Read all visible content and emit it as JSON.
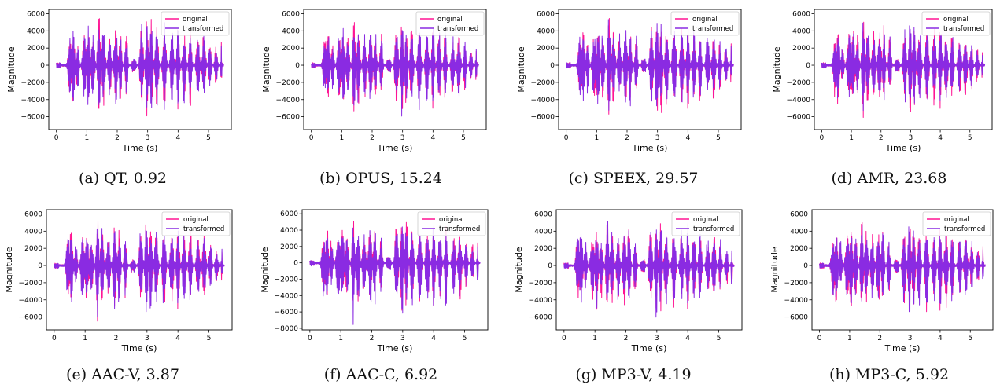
{
  "colors": {
    "original": "#ff1493",
    "transformed": "#8a2be2"
  },
  "chart_data": [
    {
      "type": "line",
      "caption": "(a) QT, 0.92",
      "xlabel": "Time (s)",
      "ylabel": "Magnitude",
      "xlim": [
        -0.25,
        5.75
      ],
      "ylim": [
        -7500,
        6500
      ],
      "xticks": [
        0,
        1,
        2,
        3,
        4,
        5
      ],
      "xtick_labels": [
        "0",
        "1",
        "2",
        "3",
        "4",
        "5"
      ],
      "yticks": [
        -6000,
        -4000,
        -2000,
        0,
        2000,
        4000,
        6000
      ],
      "ytick_labels": [
        "−6000",
        "−4000",
        "−2000",
        "0",
        "2000",
        "4000",
        "6000"
      ],
      "legend": {
        "position": "top-right",
        "entries": [
          "original",
          "transformed"
        ]
      },
      "series": [
        {
          "name": "original",
          "color": "#ff1493",
          "x_range": [
            0,
            5.5
          ],
          "peak_max": 6200,
          "peak_min": -6700
        },
        {
          "name": "transformed",
          "color": "#8a2be2",
          "x_range": [
            0,
            5.5
          ],
          "peak_max": 6100,
          "peak_min": -6600
        }
      ]
    },
    {
      "type": "line",
      "caption": "(b) OPUS, 15.24",
      "xlabel": "Time (s)",
      "ylabel": "Magnitude",
      "xlim": [
        -0.25,
        5.75
      ],
      "ylim": [
        -7500,
        6500
      ],
      "xticks": [
        0,
        1,
        2,
        3,
        4,
        5
      ],
      "xtick_labels": [
        "0",
        "1",
        "2",
        "3",
        "4",
        "5"
      ],
      "yticks": [
        -6000,
        -4000,
        -2000,
        0,
        2000,
        4000,
        6000
      ],
      "ytick_labels": [
        "−6000",
        "−4000",
        "−2000",
        "0",
        "2000",
        "4000",
        "6000"
      ],
      "legend": {
        "position": "top-right",
        "entries": [
          "original",
          "transformed"
        ]
      },
      "series": [
        {
          "name": "original",
          "color": "#ff1493",
          "x_range": [
            0,
            5.5
          ],
          "peak_max": 6200,
          "peak_min": -6600
        },
        {
          "name": "transformed",
          "color": "#8a2be2",
          "x_range": [
            0,
            5.5
          ],
          "peak_max": 5800,
          "peak_min": -6200
        }
      ]
    },
    {
      "type": "line",
      "caption": "(c) SPEEX, 29.57",
      "xlabel": "Time (s)",
      "ylabel": "Magnitude",
      "xlim": [
        -0.25,
        5.75
      ],
      "ylim": [
        -7500,
        6500
      ],
      "xticks": [
        0,
        1,
        2,
        3,
        4,
        5
      ],
      "xtick_labels": [
        "0",
        "1",
        "2",
        "3",
        "4",
        "5"
      ],
      "yticks": [
        -6000,
        -4000,
        -2000,
        0,
        2000,
        4000,
        6000
      ],
      "ytick_labels": [
        "−6000",
        "−4000",
        "−2000",
        "0",
        "2000",
        "4000",
        "6000"
      ],
      "legend": {
        "position": "top-right",
        "entries": [
          "original",
          "transformed"
        ]
      },
      "series": [
        {
          "name": "original",
          "color": "#ff1493",
          "x_range": [
            0,
            5.5
          ],
          "peak_max": 6200,
          "peak_min": -6600
        },
        {
          "name": "transformed",
          "color": "#8a2be2",
          "x_range": [
            0,
            5.5
          ],
          "peak_max": 6400,
          "peak_min": -6500
        }
      ]
    },
    {
      "type": "line",
      "caption": "(d) AMR, 23.68",
      "xlabel": "Time (s)",
      "ylabel": "Magnitude",
      "xlim": [
        -0.25,
        5.75
      ],
      "ylim": [
        -7500,
        6500
      ],
      "xticks": [
        0,
        1,
        2,
        3,
        4,
        5
      ],
      "xtick_labels": [
        "0",
        "1",
        "2",
        "3",
        "4",
        "5"
      ],
      "yticks": [
        -6000,
        -4000,
        -2000,
        0,
        2000,
        4000,
        6000
      ],
      "ytick_labels": [
        "−6000",
        "−4000",
        "−2000",
        "0",
        "2000",
        "4000",
        "6000"
      ],
      "legend": {
        "position": "top-right",
        "entries": [
          "original",
          "transformed"
        ]
      },
      "series": [
        {
          "name": "original",
          "color": "#ff1493",
          "x_range": [
            0,
            5.5
          ],
          "peak_max": 6200,
          "peak_min": -6600
        },
        {
          "name": "transformed",
          "color": "#8a2be2",
          "x_range": [
            0,
            5.5
          ],
          "peak_max": 5800,
          "peak_min": -6100
        }
      ]
    },
    {
      "type": "line",
      "caption": "(e) AAC-V, 3.87",
      "xlabel": "Time (s)",
      "ylabel": "Magnitude",
      "xlim": [
        -0.25,
        5.75
      ],
      "ylim": [
        -7500,
        6500
      ],
      "xticks": [
        0,
        1,
        2,
        3,
        4,
        5
      ],
      "xtick_labels": [
        "0",
        "1",
        "2",
        "3",
        "4",
        "5"
      ],
      "yticks": [
        -6000,
        -4000,
        -2000,
        0,
        2000,
        4000,
        6000
      ],
      "ytick_labels": [
        "−6000",
        "−4000",
        "−2000",
        "0",
        "2000",
        "4000",
        "6000"
      ],
      "legend": {
        "position": "top-right",
        "entries": [
          "original",
          "transformed"
        ]
      },
      "series": [
        {
          "name": "original",
          "color": "#ff1493",
          "x_range": [
            0,
            5.5
          ],
          "peak_max": 6000,
          "peak_min": -6600
        },
        {
          "name": "transformed",
          "color": "#8a2be2",
          "x_range": [
            0,
            5.5
          ],
          "peak_max": 5900,
          "peak_min": -6500
        }
      ]
    },
    {
      "type": "line",
      "caption": "(f) AAC-C, 6.92",
      "xlabel": "Time (s)",
      "ylabel": "Magnitude",
      "xlim": [
        -0.25,
        5.75
      ],
      "ylim": [
        -8200,
        6500
      ],
      "xticks": [
        0,
        1,
        2,
        3,
        4,
        5
      ],
      "xtick_labels": [
        "0",
        "1",
        "2",
        "3",
        "4",
        "5"
      ],
      "yticks": [
        -8000,
        -6000,
        -4000,
        -2000,
        0,
        2000,
        4000,
        6000
      ],
      "ytick_labels": [
        "−8000",
        "−6000",
        "−4000",
        "−2000",
        "0",
        "2000",
        "4000",
        "6000"
      ],
      "legend": {
        "position": "top-right",
        "entries": [
          "original",
          "transformed"
        ]
      },
      "series": [
        {
          "name": "original",
          "color": "#ff1493",
          "x_range": [
            0,
            5.5
          ],
          "peak_max": 6200,
          "peak_min": -6800
        },
        {
          "name": "transformed",
          "color": "#8a2be2",
          "x_range": [
            0,
            5.5
          ],
          "peak_max": 5900,
          "peak_min": -7700
        }
      ]
    },
    {
      "type": "line",
      "caption": "(g) MP3-V, 4.19",
      "xlabel": "Time (s)",
      "ylabel": "Magnitude",
      "xlim": [
        -0.25,
        5.75
      ],
      "ylim": [
        -7500,
        6500
      ],
      "xticks": [
        0,
        1,
        2,
        3,
        4,
        5
      ],
      "xtick_labels": [
        "0",
        "1",
        "2",
        "3",
        "4",
        "5"
      ],
      "yticks": [
        -6000,
        -4000,
        -2000,
        0,
        2000,
        4000,
        6000
      ],
      "ytick_labels": [
        "−6000",
        "−4000",
        "−2000",
        "0",
        "2000",
        "4000",
        "6000"
      ],
      "legend": {
        "position": "top-right",
        "entries": [
          "original",
          "transformed"
        ]
      },
      "series": [
        {
          "name": "original",
          "color": "#ff1493",
          "x_range": [
            0,
            5.5
          ],
          "peak_max": 6100,
          "peak_min": -6600
        },
        {
          "name": "transformed",
          "color": "#8a2be2",
          "x_range": [
            0,
            5.5
          ],
          "peak_max": 5900,
          "peak_min": -6500
        }
      ]
    },
    {
      "type": "line",
      "caption": "(h) MP3-C, 5.92",
      "xlabel": "Time (s)",
      "ylabel": "Magnitude",
      "xlim": [
        -0.25,
        5.75
      ],
      "ylim": [
        -7500,
        6500
      ],
      "xticks": [
        0,
        1,
        2,
        3,
        4,
        5
      ],
      "xtick_labels": [
        "0",
        "1",
        "2",
        "3",
        "4",
        "5"
      ],
      "yticks": [
        -6000,
        -4000,
        -2000,
        0,
        2000,
        4000,
        6000
      ],
      "ytick_labels": [
        "−6000",
        "−4000",
        "−2000",
        "0",
        "2000",
        "4000",
        "6000"
      ],
      "legend": {
        "position": "top-right",
        "entries": [
          "original",
          "transformed"
        ]
      },
      "series": [
        {
          "name": "original",
          "color": "#ff1493",
          "x_range": [
            0,
            5.5
          ],
          "peak_max": 6100,
          "peak_min": -6800
        },
        {
          "name": "transformed",
          "color": "#8a2be2",
          "x_range": [
            0,
            5.5
          ],
          "peak_max": 5900,
          "peak_min": -6500
        }
      ]
    }
  ]
}
